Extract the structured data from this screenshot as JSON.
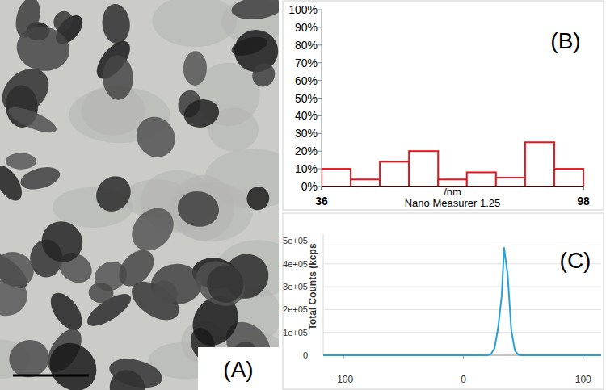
{
  "image": {
    "label": "(A)"
  },
  "chart_data": [
    {
      "type": "histogram",
      "title": "(B)",
      "x_label": "/nm",
      "annotations": [
        "Nano Measurer 1.25"
      ],
      "bins": [
        36,
        42.9,
        49.8,
        56.7,
        63.6,
        70.4,
        77.3,
        84.2,
        91.1,
        98
      ],
      "values": [
        10,
        4,
        14,
        20,
        4,
        8,
        5,
        25,
        10
      ],
      "color": "#e8141b",
      "xlim": [
        36,
        98
      ],
      "xticks": [
        36,
        98
      ],
      "ylim": [
        0,
        100
      ],
      "yticks": [
        {
          "value": 0,
          "label": "0%"
        },
        {
          "value": 10,
          "label": "10%"
        },
        {
          "value": 20,
          "label": "20%"
        },
        {
          "value": 30,
          "label": "30%"
        },
        {
          "value": 40,
          "label": "40%"
        },
        {
          "value": 50,
          "label": "50%"
        },
        {
          "value": 60,
          "label": "60%"
        },
        {
          "value": 70,
          "label": "70%"
        },
        {
          "value": 80,
          "label": "80%"
        },
        {
          "value": 90,
          "label": "90%"
        },
        {
          "value": 100,
          "label": "100%"
        }
      ],
      "grid": false
    },
    {
      "type": "line",
      "title": "(C)",
      "y_label": "Total Counts (kcps",
      "x": [
        -117,
        -100,
        -80,
        -60,
        -40,
        -20,
        0,
        10,
        20,
        23,
        26,
        29,
        32,
        34,
        37,
        40,
        43,
        46,
        49,
        60,
        80,
        100,
        115
      ],
      "values": [
        0,
        0,
        0,
        0,
        0,
        0,
        0,
        0,
        0,
        5000,
        30000,
        120000,
        260000,
        470000,
        350000,
        110000,
        20000,
        2000,
        0,
        0,
        0,
        0,
        0
      ],
      "color": "#2aa0d8",
      "xlim": [
        -117,
        115
      ],
      "xticks": [
        -100,
        0,
        100
      ],
      "ylim": [
        0,
        530000
      ],
      "yticks": [
        0,
        {
          "value": 100000,
          "label": "1e+05"
        },
        {
          "value": 200000,
          "label": "2e+05"
        },
        {
          "value": 300000,
          "label": "3e+05"
        },
        {
          "value": 400000,
          "label": "4e+05"
        },
        {
          "value": 500000,
          "label": "5e+05"
        }
      ],
      "grid": true
    }
  ]
}
